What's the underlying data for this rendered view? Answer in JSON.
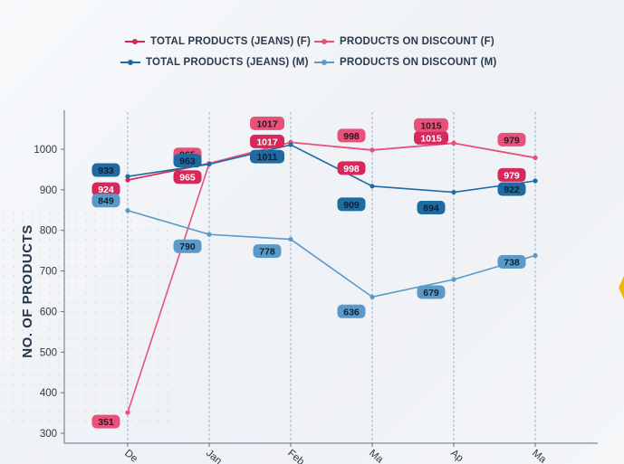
{
  "legend": {
    "items": [
      {
        "label": "TOTAL PRODUCTS (JEANS) (F)",
        "color": "#d6285a"
      },
      {
        "label": "PRODUCTS ON DISCOUNT (F)",
        "color": "#e8527a"
      },
      {
        "label": "TOTAL PRODUCTS (JEANS) (M)",
        "color": "#1f6aa0"
      },
      {
        "label": "PRODUCTS ON DISCOUNT (M)",
        "color": "#5b9ac8"
      }
    ]
  },
  "chart_data": {
    "type": "line",
    "ylabel": "NO. OF PRODUCTS",
    "ylim": [
      280,
      1080
    ],
    "yticks": [
      300,
      400,
      500,
      600,
      700,
      800,
      900,
      1000
    ],
    "categories": [
      "Dec",
      "Jan",
      "Feb",
      "Mar",
      "Apr",
      "May"
    ],
    "categories_visible": [
      "De",
      "Jan",
      "Feb",
      "Ma",
      "Ap",
      "Ma"
    ],
    "vertical_grid": true,
    "legend_position": "top",
    "series": [
      {
        "name": "TOTAL PRODUCTS (JEANS) (F)",
        "color": "#d6285a",
        "values": [
          924,
          965,
          1017,
          998,
          1015,
          979
        ],
        "labels": [
          "924",
          "965",
          "1017",
          "998",
          "1015",
          "979"
        ]
      },
      {
        "name": "PRODUCTS ON DISCOUNT (F)",
        "color": "#e8527a",
        "values": [
          351,
          965,
          1017,
          998,
          1015,
          979
        ],
        "labels": [
          "351",
          "965",
          "1017",
          "998",
          "1015",
          "979"
        ]
      },
      {
        "name": "TOTAL PRODUCTS (JEANS) (M)",
        "color": "#1f6aa0",
        "values": [
          933,
          963,
          1011,
          909,
          894,
          922
        ],
        "labels": [
          "933",
          "963",
          "1011",
          "909",
          "894",
          "922"
        ]
      },
      {
        "name": "PRODUCTS ON DISCOUNT (M)",
        "color": "#5b9ac8",
        "values": [
          849,
          790,
          778,
          636,
          679,
          738
        ],
        "labels": [
          "849",
          "790",
          "778",
          "636",
          "679",
          "738"
        ]
      }
    ]
  }
}
